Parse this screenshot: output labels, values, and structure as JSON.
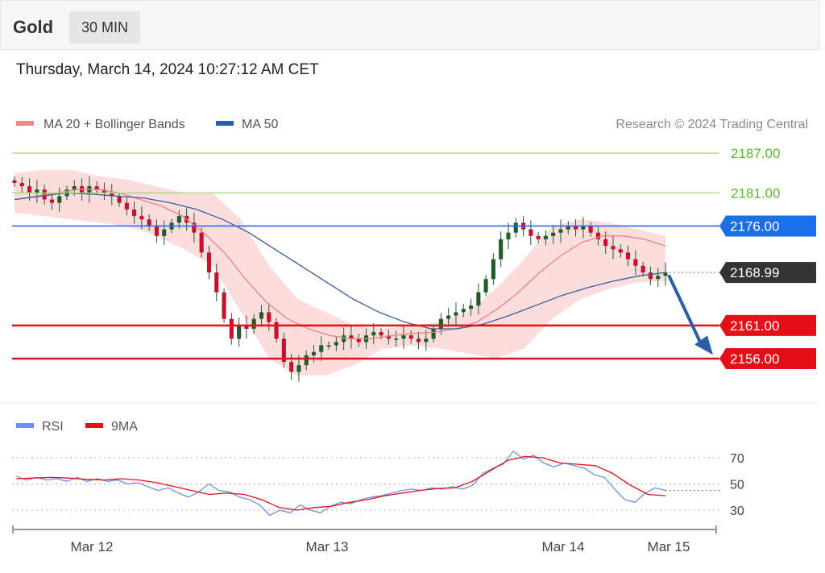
{
  "header": {
    "instrument": "Gold",
    "timeframe": "30 MIN"
  },
  "timestamp": "Thursday, March 14, 2024 10:27:12 AM CET",
  "credit": "Research © 2024 Trading Central",
  "colors": {
    "bollinger_fill": "#fbd9d9",
    "ma20": "#f08080",
    "ma50": "#3a5d9c",
    "resistance_line": "#a6d67a",
    "pivot_line": "#2b6fe0",
    "support_line": "#e3101a",
    "candle": "#1f5c2a",
    "candle_red": "#c8102e",
    "rsi": "#6e8ff0",
    "rsi_ma": "#e3101a",
    "arrow": "#2c5ea8",
    "current_price_bg": "#333333"
  },
  "legend": {
    "price": [
      {
        "label": "MA 20 + Bollinger Bands",
        "color": "#f08a8a"
      },
      {
        "label": "MA 50",
        "color": "#2c5ea8"
      }
    ],
    "rsi": [
      {
        "label": "RSI",
        "color": "#6e8ff0"
      },
      {
        "label": "9MA",
        "color": "#e3101a"
      }
    ]
  },
  "chart_data": [
    {
      "type": "candlestick",
      "title": "Gold",
      "timeframe": "30 MIN",
      "x_ticks": [
        "Mar 12",
        "Mar 13",
        "Mar 14",
        "Mar 15"
      ],
      "ylim": [
        2150,
        2190
      ],
      "levels": [
        {
          "value": "2187.00",
          "price": 2187,
          "kind": "resistance",
          "color": "#5cb82a"
        },
        {
          "value": "2181.00",
          "price": 2181,
          "kind": "resistance",
          "color": "#5cb82a"
        },
        {
          "value": "2176.00",
          "price": 2176,
          "kind": "pivot",
          "color": "#1a6fe8"
        },
        {
          "value": "2168.99",
          "price": 2168.99,
          "kind": "current",
          "color": "#333333"
        },
        {
          "value": "2161.00",
          "price": 2161,
          "kind": "support",
          "color": "#e3101a"
        },
        {
          "value": "2156.00",
          "price": 2156,
          "kind": "support",
          "color": "#e3101a"
        }
      ],
      "close_series": [
        2182.5,
        2182,
        2181,
        2181.5,
        2180,
        2179.5,
        2180.5,
        2181.5,
        2182,
        2181,
        2182,
        2181.5,
        2181,
        2180.5,
        2179.5,
        2178.5,
        2177.5,
        2177,
        2176,
        2174.5,
        2175.5,
        2176.5,
        2177.5,
        2176.5,
        2175,
        2172,
        2169,
        2166,
        2162,
        2159,
        2161,
        2160.5,
        2162,
        2163,
        2161.5,
        2159,
        2155.5,
        2154,
        2155,
        2156.5,
        2157,
        2158,
        2158,
        2158.5,
        2159.5,
        2159,
        2158.5,
        2159.5,
        2160,
        2159.5,
        2159,
        2159,
        2159.5,
        2159,
        2158.5,
        2159,
        2160.5,
        2162,
        2162.5,
        2163,
        2163.5,
        2164,
        2166,
        2168,
        2171,
        2174,
        2175,
        2176.5,
        2175.5,
        2174.5,
        2174,
        2174.5,
        2175,
        2175.5,
        2176,
        2175.5,
        2176,
        2175,
        2174,
        2173,
        2172.5,
        2172,
        2171,
        2170,
        2169,
        2168,
        2168.5,
        2169
      ],
      "ma20": [
        2180,
        2180.5,
        2181,
        2181.5,
        2181.5,
        2181,
        2180,
        2179,
        2177.5,
        2175,
        2172,
        2168,
        2164.5,
        2162,
        2160.5,
        2159.5,
        2159,
        2159,
        2159.5,
        2159.8,
        2160,
        2160.5,
        2161.5,
        2163.5,
        2166,
        2169,
        2171.5,
        2173.5,
        2174.5,
        2174.5,
        2174,
        2173
      ],
      "ma50": [
        2180,
        2180.5,
        2181,
        2180.8,
        2180.5,
        2180.2,
        2179.5,
        2178.5,
        2177,
        2175,
        2172.5,
        2170,
        2167.5,
        2165,
        2163,
        2161.5,
        2160.5,
        2160.5,
        2161.2,
        2162.5,
        2164,
        2165.5,
        2166.7,
        2167.7,
        2168.5,
        2169
      ],
      "bb_upper": [
        2184,
        2184.5,
        2184.5,
        2183.5,
        2183,
        2182,
        2181,
        2181,
        2177,
        2170,
        2165,
        2163,
        2161,
        2160.5,
        2161,
        2161.5,
        2163,
        2166.5,
        2171,
        2176,
        2177,
        2176.5,
        2175.5,
        2174.5
      ],
      "bb_lower": [
        2178,
        2177.5,
        2177,
        2176.5,
        2176,
        2174.5,
        2172.5,
        2170,
        2163,
        2156,
        2153.5,
        2153.5,
        2155,
        2157.5,
        2158,
        2157.5,
        2156.8,
        2156,
        2157.5,
        2162,
        2165,
        2166.5,
        2167.5,
        2167.7
      ]
    },
    {
      "type": "line",
      "title": "RSI",
      "ylabel": "",
      "y_ticks": [
        "70",
        "50",
        "30"
      ],
      "ylim": [
        20,
        80
      ],
      "series": [
        {
          "name": "RSI",
          "values": [
            56,
            53,
            55,
            53,
            54,
            52,
            55,
            52,
            54,
            52,
            53,
            50,
            51,
            48,
            45,
            47,
            43,
            40,
            44,
            50,
            45,
            44,
            40,
            38,
            34,
            26,
            30,
            28,
            34,
            30,
            28,
            33,
            36,
            35,
            38,
            40,
            41,
            43,
            45,
            46,
            45,
            47,
            46,
            48,
            46,
            49,
            58,
            62,
            65,
            75,
            69,
            72,
            66,
            63,
            66,
            64,
            62,
            57,
            55,
            46,
            38,
            36,
            43,
            47,
            45
          ]
        },
        {
          "name": "9MA",
          "values": [
            54,
            54.5,
            55,
            54.5,
            53.5,
            53,
            54,
            53,
            51,
            48,
            45,
            42,
            43,
            42,
            38,
            32,
            30,
            32,
            33,
            36,
            38,
            41,
            43,
            45,
            46.5,
            47,
            52,
            60,
            68,
            71,
            70,
            66,
            65,
            64,
            58,
            49,
            42,
            41
          ]
        }
      ]
    }
  ]
}
